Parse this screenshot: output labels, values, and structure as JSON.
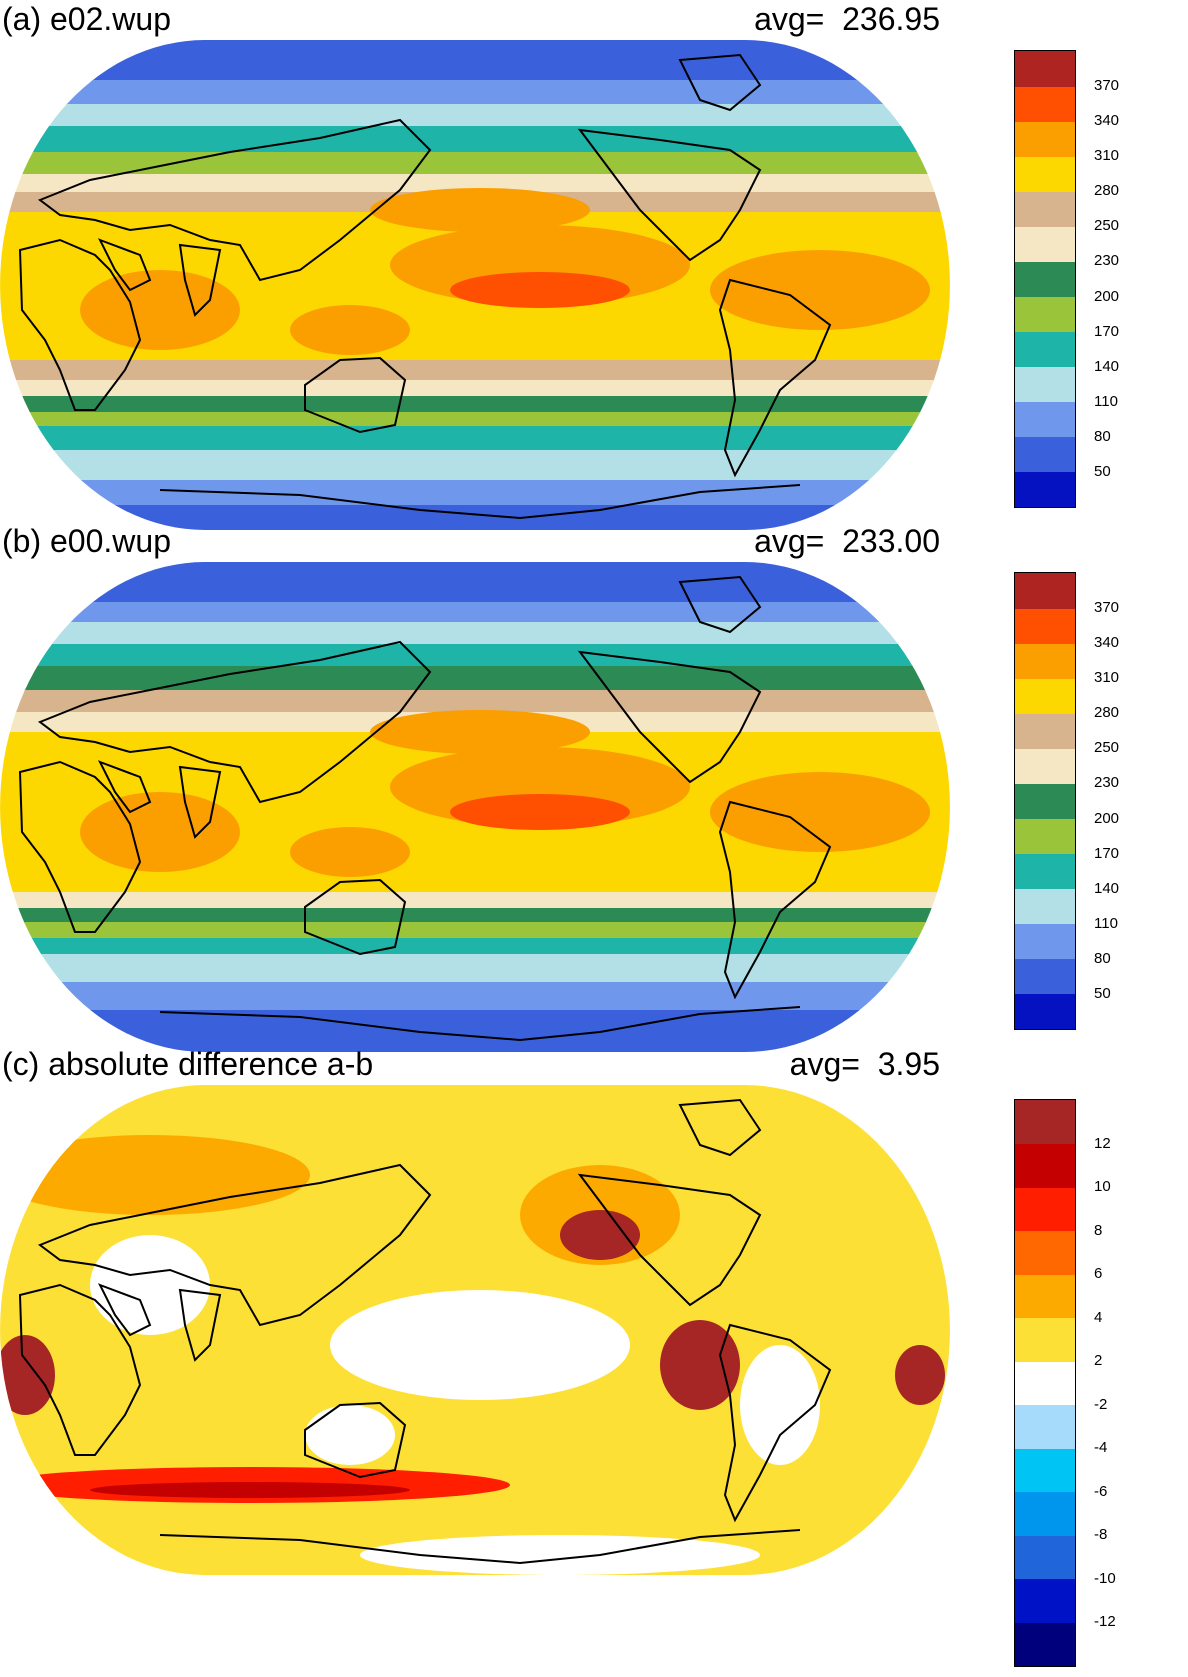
{
  "panels": [
    {
      "title": "(a) e02.wup",
      "avg_label": "avg=",
      "avg_value": "236.95",
      "colorbar": {
        "colors": [
          "#0412c2",
          "#3a60dc",
          "#6f98ec",
          "#b2e0e6",
          "#1fb4a8",
          "#9ac43a",
          "#2c8a55",
          "#f5e6c4",
          "#d7b48e",
          "#fdd800",
          "#fb9f00",
          "#ff4f00",
          "#ad2421"
        ],
        "labels": [
          "50",
          "80",
          "110",
          "140",
          "170",
          "200",
          "230",
          "250",
          "280",
          "310",
          "340",
          "370"
        ]
      }
    },
    {
      "title": "(b) e00.wup",
      "avg_label": "avg=",
      "avg_value": "233.00",
      "colorbar": {
        "colors": [
          "#0412c2",
          "#3a60dc",
          "#6f98ec",
          "#b2e0e6",
          "#1fb4a8",
          "#9ac43a",
          "#2c8a55",
          "#f5e6c4",
          "#d7b48e",
          "#fdd800",
          "#fb9f00",
          "#ff4f00",
          "#ad2421"
        ],
        "labels": [
          "50",
          "80",
          "110",
          "140",
          "170",
          "200",
          "230",
          "250",
          "280",
          "310",
          "340",
          "370"
        ]
      }
    },
    {
      "title": "(c) absolute difference a-b",
      "avg_label": "avg=",
      "avg_value": "3.95",
      "colorbar": {
        "colors": [
          "#00007c",
          "#0012c6",
          "#2066da",
          "#0096ee",
          "#00c4f4",
          "#a6dbfc",
          "#ffffff",
          "#fde036",
          "#fdaa00",
          "#ff6800",
          "#ff1e00",
          "#c40000",
          "#a52624"
        ],
        "labels": [
          "-12",
          "-10",
          "-8",
          "-6",
          "-4",
          "-2",
          "2",
          "4",
          "6",
          "8",
          "10",
          "12"
        ]
      }
    }
  ]
}
